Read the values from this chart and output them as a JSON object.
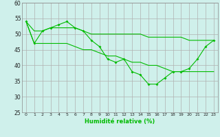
{
  "xlabel": "Humidité relative (%)",
  "bg_color": "#cff0eb",
  "grid_color": "#b0b0b0",
  "line_color": "#00bb00",
  "xlim": [
    -0.5,
    23.5
  ],
  "ylim": [
    25,
    60
  ],
  "yticks": [
    25,
    30,
    35,
    40,
    45,
    50,
    55,
    60
  ],
  "xticks": [
    0,
    1,
    2,
    3,
    4,
    5,
    6,
    7,
    8,
    9,
    10,
    11,
    12,
    13,
    14,
    15,
    16,
    17,
    18,
    19,
    20,
    21,
    22,
    23
  ],
  "series1": [
    54,
    47,
    51,
    52,
    53,
    54,
    52,
    51,
    48,
    46,
    42,
    41,
    42,
    38,
    37,
    34,
    34,
    36,
    38,
    38,
    39,
    42,
    46,
    48
  ],
  "series2": [
    54,
    51,
    51,
    52,
    52,
    52,
    52,
    51,
    50,
    50,
    50,
    50,
    50,
    50,
    50,
    49,
    49,
    49,
    49,
    49,
    48,
    48,
    48,
    48
  ],
  "series3": [
    54,
    47,
    47,
    47,
    47,
    47,
    46,
    45,
    45,
    44,
    43,
    43,
    42,
    41,
    41,
    40,
    40,
    39,
    38,
    38,
    38,
    38,
    38,
    38
  ]
}
